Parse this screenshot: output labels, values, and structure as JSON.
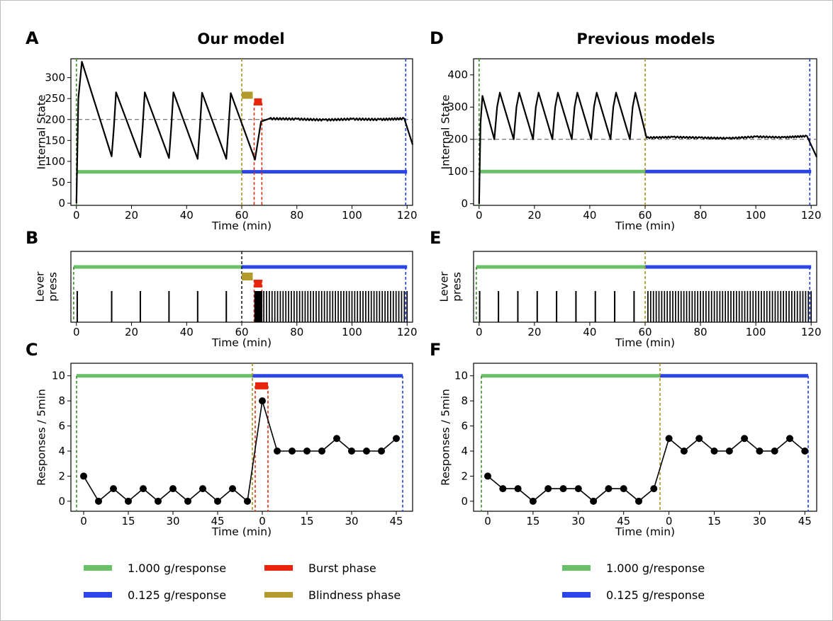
{
  "figure": {
    "left_title": "Our model",
    "right_title": "Previous models",
    "legend_left": [
      {
        "label": "1.000 g/response",
        "color": "#6abf69"
      },
      {
        "label": "0.125 g/response",
        "color": "#2b45e6"
      },
      {
        "label": "Burst phase",
        "color": "#e8250c"
      },
      {
        "label": "Blindness phase",
        "color": "#b39a2c"
      }
    ],
    "legend_right": [
      {
        "label": "1.000 g/response",
        "color": "#6abf69"
      },
      {
        "label": "0.125 g/response",
        "color": "#2b45e6"
      }
    ]
  },
  "chart_data": [
    {
      "panel": "A",
      "type": "line",
      "title": "Our model",
      "xlabel": "Time (min)",
      "ylabel": "Internal State",
      "xlim": [
        -2,
        122
      ],
      "ylim": [
        -5,
        345
      ],
      "xticks": [
        0,
        20,
        40,
        60,
        80,
        100,
        120
      ],
      "yticks": [
        0,
        50,
        100,
        150,
        200,
        250,
        300
      ],
      "series": [
        {
          "x": [
            0,
            0.7,
            2,
            12.8,
            13.6,
            14.4,
            23.2,
            24,
            24.8,
            33.6,
            34.4,
            35.2,
            44,
            44.8,
            45.6,
            54.4,
            55.2,
            56,
            64.8,
            67,
            70,
            80,
            90,
            100,
            110,
            119,
            122
          ],
          "y": [
            0,
            250,
            338,
            112,
            180,
            265,
            110,
            180,
            265,
            108,
            180,
            265,
            106,
            180,
            264,
            106,
            180,
            263,
            104,
            195,
            202,
            201,
            199,
            201,
            200,
            202,
            140
          ]
        }
      ],
      "reference_line": 200,
      "schedule_bars": {
        "y": 75,
        "green": [
          0,
          60
        ],
        "blue": [
          60,
          120
        ]
      },
      "vlines": [
        {
          "x": 0,
          "color": "green"
        },
        {
          "x": 60,
          "color": "olive"
        },
        {
          "x": 64.5,
          "color": "red"
        },
        {
          "x": 67.3,
          "color": "red"
        },
        {
          "x": 119.5,
          "color": "blue"
        }
      ],
      "blindness_marker": [
        60,
        64.5
      ],
      "burst_marker": [
        64.5,
        67.3
      ]
    },
    {
      "panel": "B",
      "type": "line",
      "title": "",
      "xlabel": "Time (min)",
      "ylabel": "Lever\npress",
      "xlim": [
        -2,
        122
      ],
      "xticks": [
        0,
        20,
        40,
        60,
        80,
        100,
        120
      ],
      "press_times": [
        0.3,
        12.8,
        23.2,
        33.6,
        44,
        54.4,
        64.8,
        65.2,
        65.6,
        66,
        66.4,
        66.8,
        67.2
      ],
      "steady_press_interval": [
        68,
        120
      ],
      "schedule_bars": {
        "green": [
          -1,
          60
        ],
        "blue": [
          60,
          120
        ]
      },
      "blindness_marker": [
        60,
        64.5
      ],
      "burst_marker": [
        64.5,
        67.3
      ]
    },
    {
      "panel": "C",
      "type": "line",
      "title": "",
      "xlabel": "Time (min)",
      "ylabel": "Responses / 5min",
      "xticklabels": [
        "0",
        "15",
        "30",
        "45",
        "0",
        "15",
        "30",
        "45"
      ],
      "yticks": [
        0,
        2,
        4,
        6,
        8,
        10
      ],
      "ylim": [
        -0.8,
        11
      ],
      "series": [
        {
          "values": [
            2,
            0,
            1,
            0,
            1,
            0,
            1,
            0,
            1,
            0,
            1,
            0,
            8,
            4,
            4,
            4,
            4,
            5,
            4,
            4,
            4,
            5
          ]
        }
      ],
      "schedule_bars": {
        "y": 10
      },
      "burst_marker": [
        -2,
        2
      ]
    },
    {
      "panel": "D",
      "type": "line",
      "title": "Previous models",
      "xlabel": "Time (min)",
      "ylabel": "Internal State",
      "xlim": [
        -2,
        122
      ],
      "ylim": [
        -5,
        450
      ],
      "xticks": [
        0,
        20,
        40,
        60,
        80,
        100,
        120
      ],
      "yticks": [
        0,
        100,
        200,
        300,
        400
      ],
      "series": [
        {
          "x": [
            0,
            0.5,
            1.2,
            5.5,
            6.5,
            7.5,
            12.5,
            13.5,
            14.5,
            19.5,
            20.5,
            21.5,
            26.5,
            27.5,
            28.5,
            33.5,
            34.5,
            35.5,
            40.5,
            41.5,
            42.5,
            47.5,
            48.5,
            49.5,
            54.5,
            55.5,
            56.5,
            60.5,
            70,
            80,
            90,
            100,
            110,
            118.5,
            122
          ],
          "y": [
            0,
            250,
            335,
            200,
            300,
            345,
            200,
            300,
            345,
            200,
            300,
            345,
            200,
            300,
            345,
            200,
            300,
            345,
            200,
            300,
            345,
            200,
            300,
            345,
            200,
            300,
            345,
            205,
            207,
            205,
            203,
            208,
            206,
            210,
            145
          ]
        }
      ],
      "reference_line": 200,
      "schedule_bars": {
        "y": 100,
        "green": [
          0,
          60
        ],
        "blue": [
          60,
          120
        ]
      },
      "vlines": [
        {
          "x": 0,
          "color": "green"
        },
        {
          "x": 60,
          "color": "olive"
        },
        {
          "x": 119.5,
          "color": "blue"
        }
      ]
    },
    {
      "panel": "E",
      "type": "line",
      "title": "",
      "xlabel": "Time (min)",
      "ylabel": "Lever\npress",
      "xlim": [
        -2,
        122
      ],
      "xticks": [
        0,
        20,
        40,
        60,
        80,
        100,
        120
      ],
      "press_times": [
        0.2,
        7,
        14,
        21,
        28,
        35,
        42,
        49,
        56
      ],
      "steady_press_interval": [
        61,
        120
      ],
      "schedule_bars": {
        "green": [
          -1,
          60
        ],
        "blue": [
          60,
          120
        ]
      }
    },
    {
      "panel": "F",
      "type": "line",
      "title": "",
      "xlabel": "Time (min)",
      "ylabel": "Responses / 5min",
      "xticklabels": [
        "0",
        "15",
        "30",
        "45",
        "0",
        "15",
        "30",
        "45"
      ],
      "yticks": [
        0,
        2,
        4,
        6,
        8,
        10
      ],
      "ylim": [
        -0.8,
        11
      ],
      "series": [
        {
          "values": [
            2,
            1,
            1,
            0,
            1,
            1,
            1,
            0,
            1,
            1,
            0,
            1,
            5,
            4,
            5,
            4,
            4,
            5,
            4,
            4,
            5,
            4
          ]
        }
      ],
      "schedule_bars": {
        "y": 10
      }
    }
  ]
}
